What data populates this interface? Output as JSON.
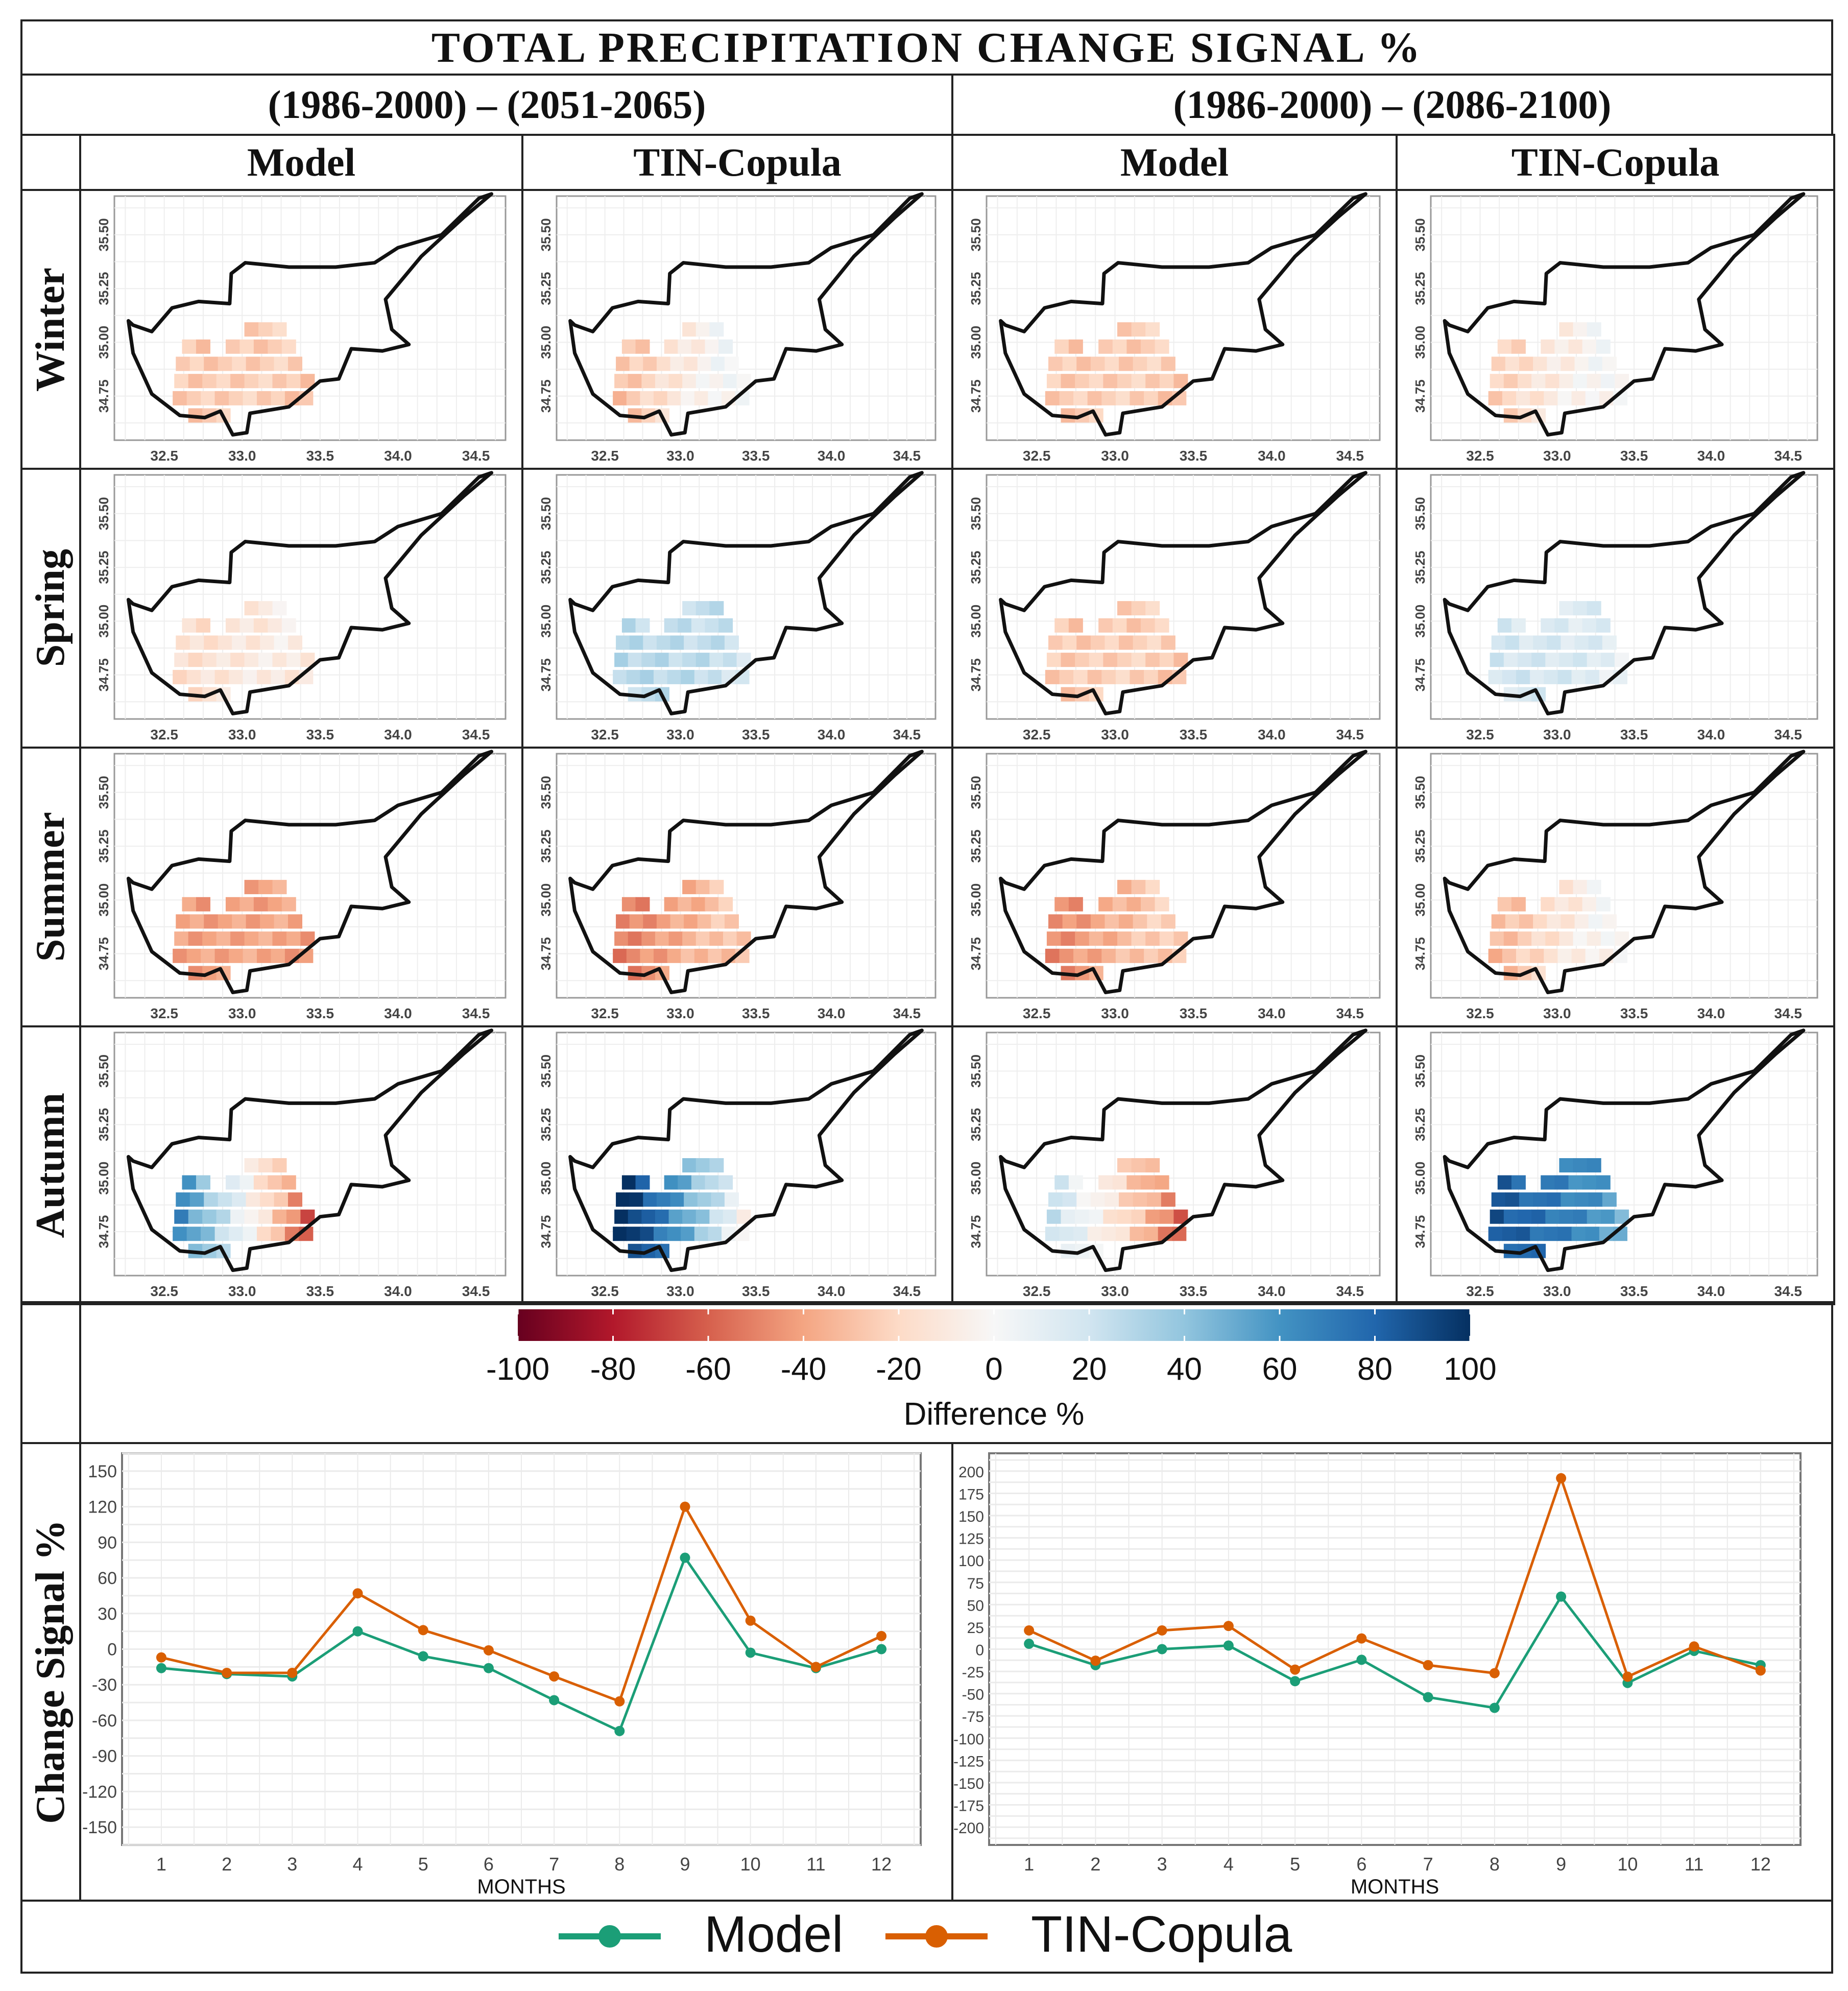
{
  "title": "TOTAL PRECIPITATION CHANGE SIGNAL %",
  "periods": [
    "(1986-2000) – (2051-2065)",
    "(1986-2000) – (2086-2100)"
  ],
  "columns": [
    "Model",
    "TIN-Copula",
    "Model",
    "TIN-Copula"
  ],
  "seasons": [
    "Winter",
    "Spring",
    "Summer",
    "Autumn"
  ],
  "map_axes": {
    "x_ticks": [
      "32.5",
      "33.0",
      "33.5",
      "34.0",
      "34.5"
    ],
    "y_ticks": [
      "34.75",
      "35.00",
      "35.25",
      "35.50"
    ]
  },
  "map_panels_note_values": {
    "description_key": "mean change % and west-to-east gradient per panel [season][column]",
    "mean": [
      [
        -25,
        -12,
        -25,
        -10
      ],
      [
        -12,
        25,
        -25,
        15
      ],
      [
        -40,
        -38,
        -35,
        -15
      ],
      [
        5,
        55,
        -15,
        70
      ]
    ],
    "gradient": [
      [
        0,
        20,
        0,
        15
      ],
      [
        5,
        -5,
        0,
        -5
      ],
      [
        0,
        15,
        15,
        20
      ],
      [
        -70,
        -60,
        -45,
        -20
      ]
    ]
  },
  "colorbar": {
    "ticks": [
      "-100",
      "-80",
      "-60",
      "-40",
      "-20",
      "0",
      "20",
      "40",
      "60",
      "80",
      "100"
    ],
    "label": "Difference %",
    "colors": [
      "#67001f",
      "#b2182b",
      "#d6604d",
      "#f4a582",
      "#fddbc7",
      "#f7f7f7",
      "#d1e5f0",
      "#92c5de",
      "#4393c3",
      "#2166ac",
      "#053061"
    ]
  },
  "chart_data": [
    {
      "type": "line",
      "title": "(1986-2000) – (2051-2065)",
      "xlabel": "MONTHS",
      "ylabel": "Change Signal %",
      "x": [
        1,
        2,
        3,
        4,
        5,
        6,
        7,
        8,
        9,
        10,
        11,
        12
      ],
      "ylim": [
        -165,
        165
      ],
      "y_ticks": [
        "150",
        "120",
        "90",
        "60",
        "30",
        "0",
        "-30",
        "-60",
        "-90",
        "-120",
        "-150"
      ],
      "series": [
        {
          "name": "Model",
          "color": "#1b9e77",
          "values": [
            -16,
            -21,
            -23,
            15,
            -6,
            -16,
            -43,
            -69,
            77,
            -3,
            -16,
            0
          ]
        },
        {
          "name": "TIN-Copula",
          "color": "#d95f02",
          "values": [
            -7,
            -20,
            -20,
            47,
            16,
            -1,
            -23,
            -44,
            120,
            24,
            -15,
            11
          ]
        }
      ]
    },
    {
      "type": "line",
      "title": "(1986-2000) – (2086-2100)",
      "xlabel": "MONTHS",
      "ylabel": "Change Signal %",
      "x": [
        1,
        2,
        3,
        4,
        5,
        6,
        7,
        8,
        9,
        10,
        11,
        12
      ],
      "ylim": [
        -220,
        220
      ],
      "y_ticks": [
        "200",
        "175",
        "150",
        "125",
        "100",
        "75",
        "50",
        "25",
        "0",
        "-25",
        "-50",
        "-75",
        "-100",
        "-125",
        "-150",
        "-175",
        "-200"
      ],
      "series": [
        {
          "name": "Model",
          "color": "#1b9e77",
          "values": [
            6,
            -18,
            0,
            4,
            -36,
            -12,
            -54,
            -66,
            59,
            -38,
            -2,
            -18
          ]
        },
        {
          "name": "TIN-Copula",
          "color": "#d95f02",
          "values": [
            21,
            -13,
            21,
            26,
            -23,
            12,
            -18,
            -27,
            192,
            -31,
            3,
            -24
          ]
        }
      ]
    }
  ],
  "legend": [
    {
      "name": "Model",
      "color": "#1b9e77"
    },
    {
      "name": "TIN-Copula",
      "color": "#d95f02"
    }
  ]
}
